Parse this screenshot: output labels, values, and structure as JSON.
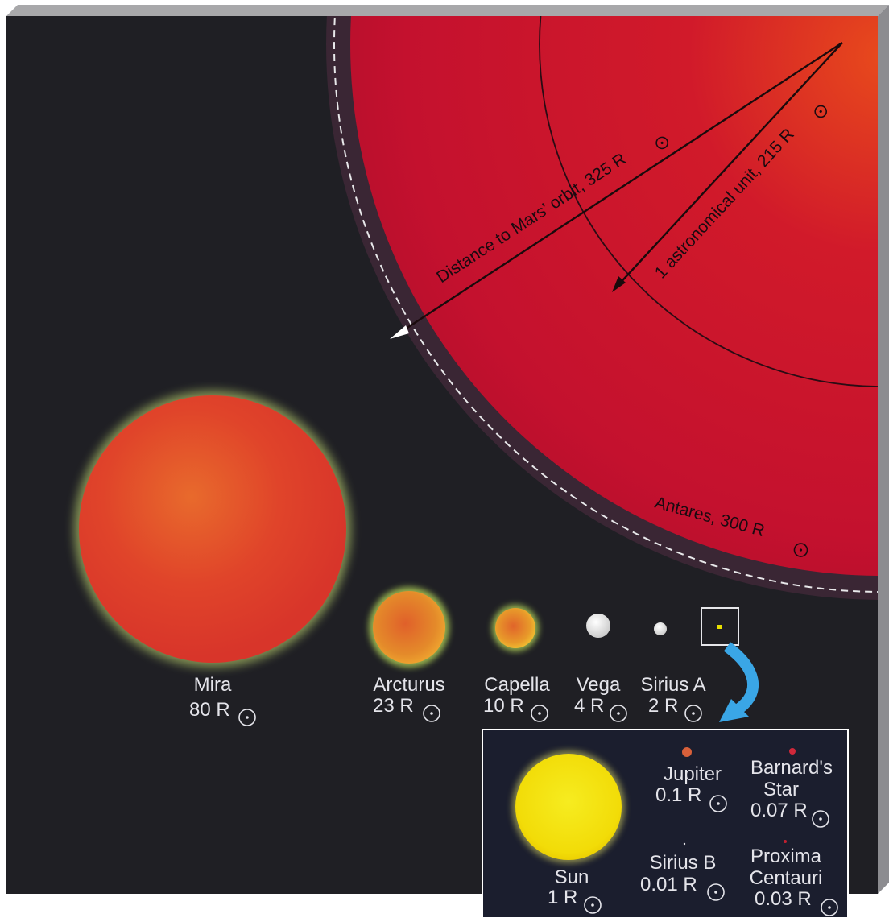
{
  "colors": {
    "background": "#1f1f24",
    "antares": "#c8102e",
    "mira": "#e2472c",
    "sun": "#f2e00a",
    "arrow": "#3aa6e6",
    "label": "#e4e4ea"
  },
  "antares": {
    "label": "Antares, 300 R",
    "mars_orbit_label": "Distance to Mars' orbit, 325 R",
    "au_label": "1 astronomical unit, 215 R"
  },
  "stars": [
    {
      "id": "mira",
      "name": "Mira",
      "radius_text": "80 R"
    },
    {
      "id": "arcturus",
      "name": "Arcturus",
      "radius_text": "23 R"
    },
    {
      "id": "capella",
      "name": "Capella",
      "radius_text": "10 R"
    },
    {
      "id": "vega",
      "name": "Vega",
      "radius_text": "4 R"
    },
    {
      "id": "siriusa",
      "name": "Sirius A",
      "radius_text": "2 R"
    }
  ],
  "inset": {
    "arrow_icon": "curved-arrow-icon",
    "sun": {
      "name": "Sun",
      "radius_text": "1 R"
    },
    "jupiter": {
      "name": "Jupiter",
      "radius_text": "0.1 R"
    },
    "barnard": {
      "name_line1": "Barnard's",
      "name_line2": "Star",
      "radius_text": "0.07 R"
    },
    "siriusb": {
      "name": "Sirius B",
      "radius_text": "0.01 R"
    },
    "proxima": {
      "name_line1": "Proxima",
      "name_line2": "Centauri",
      "radius_text": "0.03 R"
    }
  }
}
